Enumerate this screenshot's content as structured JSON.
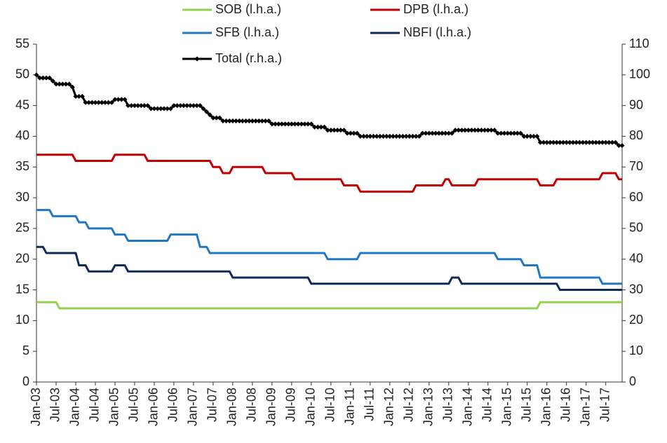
{
  "chart_data": {
    "type": "line",
    "categories": [
      "Jan-03",
      null,
      null,
      null,
      null,
      null,
      "Jul-03",
      null,
      null,
      null,
      null,
      null,
      "Jan-04",
      null,
      null,
      null,
      null,
      null,
      "Jul-04",
      null,
      null,
      null,
      null,
      null,
      "Jan-05",
      null,
      null,
      null,
      null,
      null,
      "Jul-05",
      null,
      null,
      null,
      null,
      null,
      "Jan-06",
      null,
      null,
      null,
      null,
      null,
      "Jul-06",
      null,
      null,
      null,
      null,
      null,
      "Jan-07",
      null,
      null,
      null,
      null,
      null,
      "Jul-07",
      null,
      null,
      null,
      null,
      null,
      "Jan-08",
      null,
      null,
      null,
      null,
      null,
      "Jul-08",
      null,
      null,
      null,
      null,
      null,
      "Jan-09",
      null,
      null,
      null,
      null,
      null,
      "Jul-09",
      null,
      null,
      null,
      null,
      null,
      "Jan-10",
      null,
      null,
      null,
      null,
      null,
      "Jul-10",
      null,
      null,
      null,
      null,
      null,
      "Jan-11",
      null,
      null,
      null,
      null,
      null,
      "Jul-11",
      null,
      null,
      null,
      null,
      null,
      "Jan-12",
      null,
      null,
      null,
      null,
      null,
      "Jul-12",
      null,
      null,
      null,
      null,
      null,
      "Jan-13",
      null,
      null,
      null,
      null,
      null,
      "Jul-13",
      null,
      null,
      null,
      null,
      null,
      "Jan-14",
      null,
      null,
      null,
      null,
      null,
      "Jul-14",
      null,
      null,
      null,
      null,
      null,
      "Jan-15",
      null,
      null,
      null,
      null,
      null,
      "Jul-15",
      null,
      null,
      null,
      null,
      null,
      "Jan-16",
      null,
      null,
      null,
      null,
      null,
      "Jul-16",
      null,
      null,
      null,
      null,
      null,
      "Jan-17",
      null,
      null,
      null,
      null,
      null,
      "Jul-17",
      null,
      null,
      null,
      null,
      null
    ],
    "series": [
      {
        "name": "SOB (l.h.a.)",
        "color": "#92d050",
        "axis": "y",
        "values": [
          13,
          13,
          13,
          13,
          13,
          13,
          13,
          12,
          12,
          12,
          12,
          12,
          12,
          12,
          12,
          12,
          12,
          12,
          12,
          12,
          12,
          12,
          12,
          12,
          12,
          12,
          12,
          12,
          12,
          12,
          12,
          12,
          12,
          12,
          12,
          12,
          12,
          12,
          12,
          12,
          12,
          12,
          12,
          12,
          12,
          12,
          12,
          12,
          12,
          12,
          12,
          12,
          12,
          12,
          12,
          12,
          12,
          12,
          12,
          12,
          12,
          12,
          12,
          12,
          12,
          12,
          12,
          12,
          12,
          12,
          12,
          12,
          12,
          12,
          12,
          12,
          12,
          12,
          12,
          12,
          12,
          12,
          12,
          12,
          12,
          12,
          12,
          12,
          12,
          12,
          12,
          12,
          12,
          12,
          12,
          12,
          12,
          12,
          12,
          12,
          12,
          12,
          12,
          12,
          12,
          12,
          12,
          12,
          12,
          12,
          12,
          12,
          12,
          12,
          12,
          12,
          12,
          12,
          12,
          12,
          12,
          12,
          12,
          12,
          12,
          12,
          12,
          12,
          12,
          12,
          12,
          12,
          12,
          12,
          12,
          12,
          12,
          12,
          12,
          12,
          12,
          12,
          12,
          12,
          12,
          12,
          12,
          12,
          12,
          12,
          12,
          12,
          12,
          12,
          13,
          13,
          13,
          13,
          13,
          13,
          13,
          13,
          13,
          13,
          13,
          13,
          13,
          13,
          13,
          13,
          13,
          13,
          13,
          13,
          13,
          13,
          13,
          13,
          13,
          13
        ]
      },
      {
        "name": "DPB (l.h.a.)",
        "color": "#c00000",
        "axis": "y",
        "values": [
          37,
          37,
          37,
          37,
          37,
          37,
          37,
          37,
          37,
          37,
          37,
          37,
          36,
          36,
          36,
          36,
          36,
          36,
          36,
          36,
          36,
          36,
          36,
          36,
          37,
          37,
          37,
          37,
          37,
          37,
          37,
          37,
          37,
          37,
          36,
          36,
          36,
          36,
          36,
          36,
          36,
          36,
          36,
          36,
          36,
          36,
          36,
          36,
          36,
          36,
          36,
          36,
          36,
          36,
          35,
          35,
          35,
          34,
          34,
          34,
          35,
          35,
          35,
          35,
          35,
          35,
          35,
          35,
          35,
          35,
          34,
          34,
          34,
          34,
          34,
          34,
          34,
          34,
          34,
          33,
          33,
          33,
          33,
          33,
          33,
          33,
          33,
          33,
          33,
          33,
          33,
          33,
          33,
          33,
          32,
          32,
          32,
          32,
          32,
          31,
          31,
          31,
          31,
          31,
          31,
          31,
          31,
          31,
          31,
          31,
          31,
          31,
          31,
          31,
          31,
          31,
          32,
          32,
          32,
          32,
          32,
          32,
          32,
          32,
          32,
          33,
          33,
          32,
          32,
          32,
          32,
          32,
          32,
          32,
          32,
          33,
          33,
          33,
          33,
          33,
          33,
          33,
          33,
          33,
          33,
          33,
          33,
          33,
          33,
          33,
          33,
          33,
          33,
          33,
          32,
          32,
          32,
          32,
          32,
          33,
          33,
          33,
          33,
          33,
          33,
          33,
          33,
          33,
          33,
          33,
          33,
          33,
          33,
          34,
          34,
          34,
          34,
          34,
          33,
          33
        ]
      },
      {
        "name": "SFB (l.h.a.)",
        "color": "#1f78c1",
        "axis": "y",
        "values": [
          28,
          28,
          28,
          28,
          28,
          27,
          27,
          27,
          27,
          27,
          27,
          27,
          27,
          26,
          26,
          26,
          25,
          25,
          25,
          25,
          25,
          25,
          25,
          25,
          24,
          24,
          24,
          24,
          23,
          23,
          23,
          23,
          23,
          23,
          23,
          23,
          23,
          23,
          23,
          23,
          23,
          24,
          24,
          24,
          24,
          24,
          24,
          24,
          24,
          24,
          22,
          22,
          22,
          21,
          21,
          21,
          21,
          21,
          21,
          21,
          21,
          21,
          21,
          21,
          21,
          21,
          21,
          21,
          21,
          21,
          21,
          21,
          21,
          21,
          21,
          21,
          21,
          21,
          21,
          21,
          21,
          21,
          21,
          21,
          21,
          21,
          21,
          21,
          21,
          20,
          20,
          20,
          20,
          20,
          20,
          20,
          20,
          20,
          20,
          21,
          21,
          21,
          21,
          21,
          21,
          21,
          21,
          21,
          21,
          21,
          21,
          21,
          21,
          21,
          21,
          21,
          21,
          21,
          21,
          21,
          21,
          21,
          21,
          21,
          21,
          21,
          21,
          21,
          21,
          21,
          21,
          21,
          21,
          21,
          21,
          21,
          21,
          21,
          21,
          21,
          21,
          20,
          20,
          20,
          20,
          20,
          20,
          20,
          20,
          19,
          19,
          19,
          19,
          19,
          17,
          17,
          17,
          17,
          17,
          17,
          17,
          17,
          17,
          17,
          17,
          17,
          17,
          17,
          17,
          17,
          17,
          17,
          17,
          16,
          16,
          16,
          16,
          16,
          16,
          16
        ]
      },
      {
        "name": "NBFI (l.h.a.)",
        "color": "#0e2a5a",
        "axis": "y",
        "values": [
          22,
          22,
          22,
          21,
          21,
          21,
          21,
          21,
          21,
          21,
          21,
          21,
          21,
          19,
          19,
          19,
          18,
          18,
          18,
          18,
          18,
          18,
          18,
          18,
          19,
          19,
          19,
          19,
          18,
          18,
          18,
          18,
          18,
          18,
          18,
          18,
          18,
          18,
          18,
          18,
          18,
          18,
          18,
          18,
          18,
          18,
          18,
          18,
          18,
          18,
          18,
          18,
          18,
          18,
          18,
          18,
          18,
          18,
          18,
          18,
          17,
          17,
          17,
          17,
          17,
          17,
          17,
          17,
          17,
          17,
          17,
          17,
          17,
          17,
          17,
          17,
          17,
          17,
          17,
          17,
          17,
          17,
          17,
          17,
          16,
          16,
          16,
          16,
          16,
          16,
          16,
          16,
          16,
          16,
          16,
          16,
          16,
          16,
          16,
          16,
          16,
          16,
          16,
          16,
          16,
          16,
          16,
          16,
          16,
          16,
          16,
          16,
          16,
          16,
          16,
          16,
          16,
          16,
          16,
          16,
          16,
          16,
          16,
          16,
          16,
          16,
          16,
          17,
          17,
          17,
          16,
          16,
          16,
          16,
          16,
          16,
          16,
          16,
          16,
          16,
          16,
          16,
          16,
          16,
          16,
          16,
          16,
          16,
          16,
          16,
          16,
          16,
          16,
          16,
          16,
          16,
          16,
          16,
          16,
          16,
          15,
          15,
          15,
          15,
          15,
          15,
          15,
          15,
          15,
          15,
          15,
          15,
          15,
          15,
          15,
          15,
          15,
          15,
          15,
          15
        ]
      },
      {
        "name": "Total (r.h.a.)",
        "color": "#000000",
        "axis": "y2",
        "values": [
          100,
          99,
          99,
          99,
          99,
          98,
          97,
          97,
          97,
          97,
          97,
          96,
          93,
          93,
          93,
          91,
          91,
          91,
          91,
          91,
          91,
          91,
          91,
          91,
          92,
          92,
          92,
          92,
          90,
          90,
          90,
          90,
          90,
          90,
          90,
          89,
          89,
          89,
          89,
          89,
          89,
          89,
          90,
          90,
          90,
          90,
          90,
          90,
          90,
          90,
          90,
          89,
          88,
          87,
          86,
          86,
          86,
          85,
          85,
          85,
          85,
          85,
          85,
          85,
          85,
          85,
          85,
          85,
          85,
          85,
          85,
          85,
          84,
          84,
          84,
          84,
          84,
          84,
          84,
          84,
          84,
          84,
          84,
          84,
          84,
          83,
          83,
          83,
          83,
          82,
          82,
          82,
          82,
          82,
          82,
          81,
          81,
          81,
          81,
          80,
          80,
          80,
          80,
          80,
          80,
          80,
          80,
          80,
          80,
          80,
          80,
          80,
          80,
          80,
          80,
          80,
          80,
          80,
          81,
          81,
          81,
          81,
          81,
          81,
          81,
          81,
          81,
          81,
          82,
          82,
          82,
          82,
          82,
          82,
          82,
          82,
          82,
          82,
          82,
          82,
          82,
          81,
          81,
          81,
          81,
          81,
          81,
          81,
          81,
          80,
          80,
          80,
          80,
          80,
          78,
          78,
          78,
          78,
          78,
          78,
          78,
          78,
          78,
          78,
          78,
          78,
          78,
          78,
          78,
          78,
          78,
          78,
          78,
          78,
          78,
          78,
          78,
          78,
          77,
          77
        ]
      }
    ],
    "ylim": [
      0,
      55
    ],
    "yticks": [
      0,
      5,
      10,
      15,
      20,
      25,
      30,
      35,
      40,
      45,
      50,
      55
    ],
    "y2lim": [
      0,
      110
    ],
    "y2ticks": [
      0,
      10,
      20,
      30,
      40,
      50,
      60,
      70,
      80,
      90,
      100,
      110
    ],
    "grid": false,
    "legend": "top"
  }
}
